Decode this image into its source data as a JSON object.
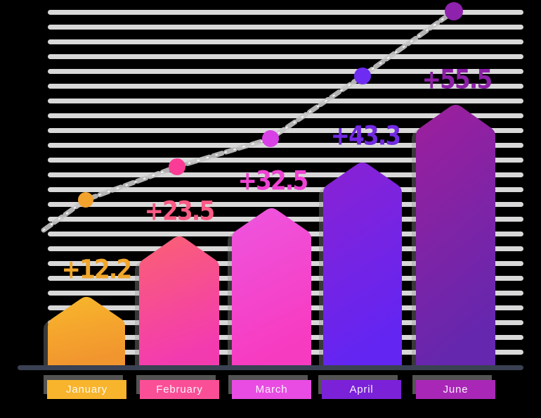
{
  "chart_data": {
    "type": "bar",
    "title": "",
    "categories": [
      "January",
      "February",
      "March",
      "April",
      "June"
    ],
    "values": [
      12.2,
      23.5,
      32.5,
      43.3,
      55.5
    ],
    "value_labels": [
      "+12.2",
      "+23.5",
      "+32.5",
      "+43.3",
      "+55.5"
    ],
    "ylim": [
      0,
      60
    ],
    "grid": "horizontal-stripes",
    "legend_position": "bottom",
    "bar_gradients": [
      [
        "#f8b72b",
        "#f1952f"
      ],
      [
        "#fa6173",
        "#f33bb0"
      ],
      [
        "#ee55df",
        "#f73bc0"
      ],
      [
        "#8a22d3",
        "#6325f2"
      ],
      [
        "#9e1f9c",
        "#6527ae"
      ]
    ],
    "label_colors": [
      "#f0a62b",
      "#fa5a84",
      "#ef43d3",
      "#7329e2",
      "#8c1fa6"
    ],
    "badge_colors": [
      "#f8b42c",
      "#fa4f97",
      "#e94ce2",
      "#7b21d8",
      "#a827b6"
    ],
    "trend_line": {
      "style": "dashed",
      "color": "#c7c7c7",
      "dot_colors": [
        "#f2a32d",
        "#fb3c96",
        "#d841e5",
        "#6e2bf2",
        "#8e22ad"
      ]
    },
    "axis_color": "#3a4152",
    "stripe_color": "#e4e4e4",
    "background": "#000000"
  }
}
